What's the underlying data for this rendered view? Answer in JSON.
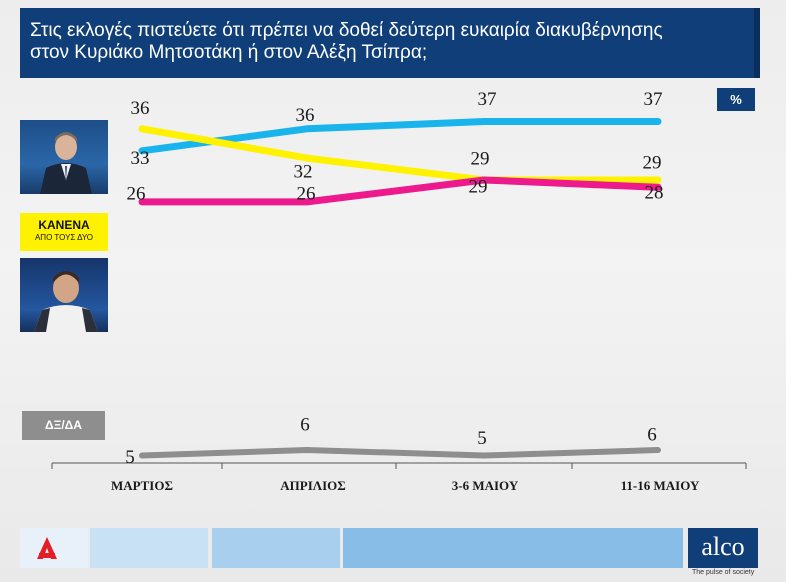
{
  "header": {
    "title": "Στις εκλογές πιστεύετε ότι πρέπει να δοθεί δεύτερη ευκαιρία διακυβέρνησης\nστον Κυριάκο Μητσοτάκη ή στον Αλέξη Τσίπρα;",
    "unit": "%"
  },
  "legend": {
    "none_line1": "ΚΑΝΕΝΑ",
    "none_line2": "ΑΠΟ ΤΟΥΣ ΔΥΟ",
    "dk": "ΔΞ/ΔΑ"
  },
  "footer": {
    "brand": "alco",
    "tagline": "The pulse of society"
  },
  "colors": {
    "mitsotakis": "#19b4ec",
    "none": "#fff200",
    "tsipras": "#ec1a8c",
    "dk": "#8e8e8e",
    "brand": "#0f3e78"
  },
  "chart_data": {
    "type": "line",
    "categories": [
      "ΜΑΡΤΙΟΣ",
      "ΑΠΡΙΛΙΟΣ",
      "3-6 ΜΑΙΟΥ",
      "11-16 ΜΑΙΟΥ"
    ],
    "unit": "%",
    "series": [
      {
        "key": "mitsotakis",
        "values": [
          33,
          36,
          37,
          37
        ]
      },
      {
        "key": "none",
        "name": "ΚΑΝΕΝΑ ΑΠΟ ΤΟΥΣ ΔΥΟ",
        "values": [
          36,
          32,
          29,
          29
        ]
      },
      {
        "key": "tsipras",
        "values": [
          26,
          26,
          29,
          28
        ]
      },
      {
        "key": "dk",
        "name": "ΔΞ/ΔΑ",
        "values": [
          5,
          6,
          5,
          6
        ]
      }
    ]
  }
}
